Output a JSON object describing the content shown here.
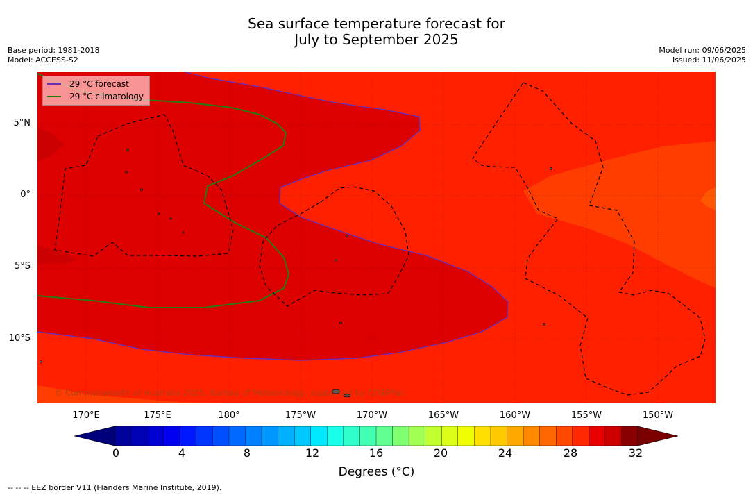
{
  "title": {
    "line1": "Sea surface temperature forecast for",
    "line2": "July to September 2025"
  },
  "meta": {
    "base_period": "Base period: 1981-2018",
    "model": "Model: ACCESS-S2",
    "model_run": "Model run: 09/06/2025",
    "issued": "Issued: 11/06/2025"
  },
  "map": {
    "lat_labels": [
      "5°N",
      "0°",
      "5°S",
      "10°S"
    ],
    "lon_labels": [
      "170°E",
      "175°E",
      "180°",
      "175°W",
      "170°W",
      "165°W",
      "160°W",
      "155°W",
      "150°W"
    ],
    "legend": {
      "forecast": "29 °C  forecast",
      "climatology": "29 °C  climatology",
      "forecast_color": "#6a2db5",
      "climatology_color": "#2a7a12"
    },
    "copyright": "© Commonwealth of Australia 2025, Bureau of Meteorology, supported by COSPPac",
    "colors": {
      "sst_29_30": "#dd0000",
      "sst_28_29": "#ff2000",
      "sst_27_28": "#ff3d00",
      "sst_26_27": "#ff5800"
    }
  },
  "colorbar": {
    "ticks": [
      "0",
      "4",
      "8",
      "12",
      "16",
      "20",
      "24",
      "28",
      "32"
    ],
    "label": "Degrees (°C)",
    "colors": [
      "#00009a",
      "#0000b4",
      "#0000d2",
      "#0000f0",
      "#0018ff",
      "#0034ff",
      "#0050ff",
      "#0068ff",
      "#0080ff",
      "#0098ff",
      "#00b0ff",
      "#00c8ff",
      "#00e8ff",
      "#18ffe8",
      "#30ffcc",
      "#40ffb0",
      "#60ff90",
      "#80ff70",
      "#a0ff50",
      "#c0ff30",
      "#dcff18",
      "#f0ff00",
      "#ffe000",
      "#ffc800",
      "#ffa800",
      "#ff8800",
      "#ff6800",
      "#ff4800",
      "#ff2800",
      "#e80000",
      "#cc0000",
      "#880000"
    ],
    "under_color": "#00007a",
    "over_color": "#7a0000"
  },
  "footnote": "--  --  -- EEZ border V11 (Flanders Marine Institute, 2019)."
}
